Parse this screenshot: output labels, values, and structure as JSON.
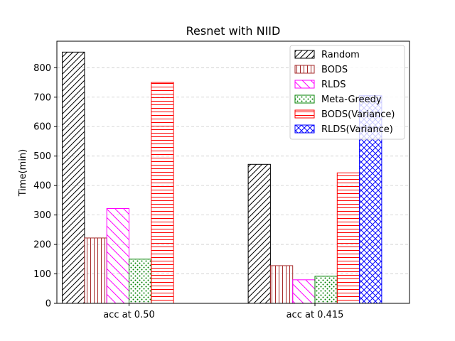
{
  "chart_data": {
    "type": "bar",
    "title": "Resnet with NIID",
    "xlabel": "",
    "ylabel": "Time(min)",
    "categories": [
      "acc at 0.50",
      "acc at 0.415"
    ],
    "ylim": [
      0,
      890
    ],
    "yticks": [
      0,
      100,
      200,
      300,
      400,
      500,
      600,
      700,
      800
    ],
    "grid": "y-dashed",
    "legend_position": "top-right",
    "series": [
      {
        "name": "Random",
        "values": [
          853,
          472
        ],
        "color": "#000000",
        "hatch": "diagonal-forward"
      },
      {
        "name": "BODS",
        "values": [
          222,
          128
        ],
        "color": "#a52a2a",
        "hatch": "vertical"
      },
      {
        "name": "RLDS",
        "values": [
          322,
          80
        ],
        "color": "#ff00ff",
        "hatch": "diagonal-back"
      },
      {
        "name": "Meta-Greedy",
        "values": [
          150,
          92
        ],
        "color": "#008000",
        "hatch": "dots"
      },
      {
        "name": "BODS(Variance)",
        "values": [
          750,
          443
        ],
        "color": "#ff0000",
        "hatch": "horizontal"
      },
      {
        "name": "RLDS(Variance)",
        "values": [
          0,
          705
        ],
        "color": "#0000ff",
        "hatch": "cross"
      }
    ]
  }
}
